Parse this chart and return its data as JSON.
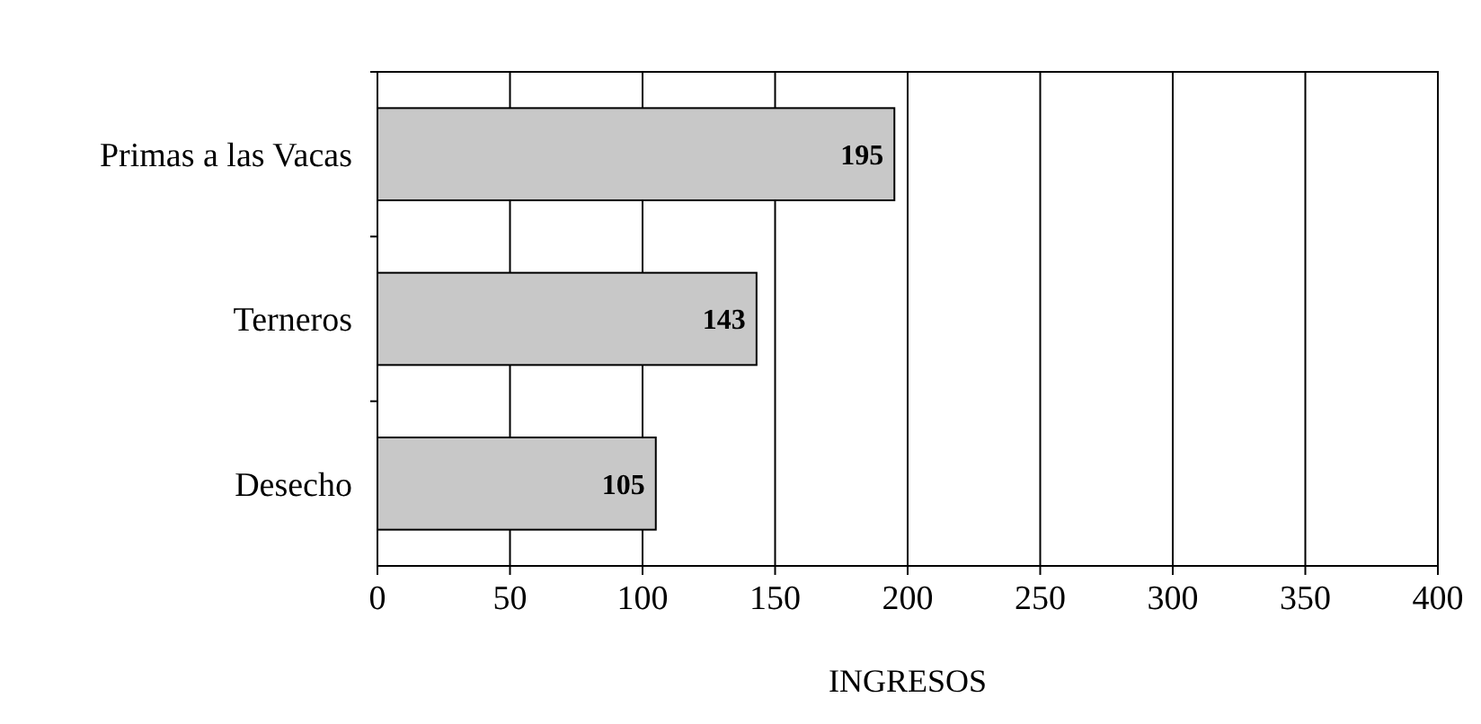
{
  "chart_data": {
    "type": "bar",
    "orientation": "horizontal",
    "categories": [
      "Primas a las Vacas",
      "Terneros",
      "Desecho"
    ],
    "values": [
      195,
      143,
      105
    ],
    "color": "#c8c8c8",
    "xlabel": "INGRESOS",
    "xlim": [
      0,
      400
    ],
    "xticks": [
      0,
      50,
      100,
      150,
      200,
      250,
      300,
      350,
      400
    ],
    "grid": "x",
    "data_labels": true
  }
}
